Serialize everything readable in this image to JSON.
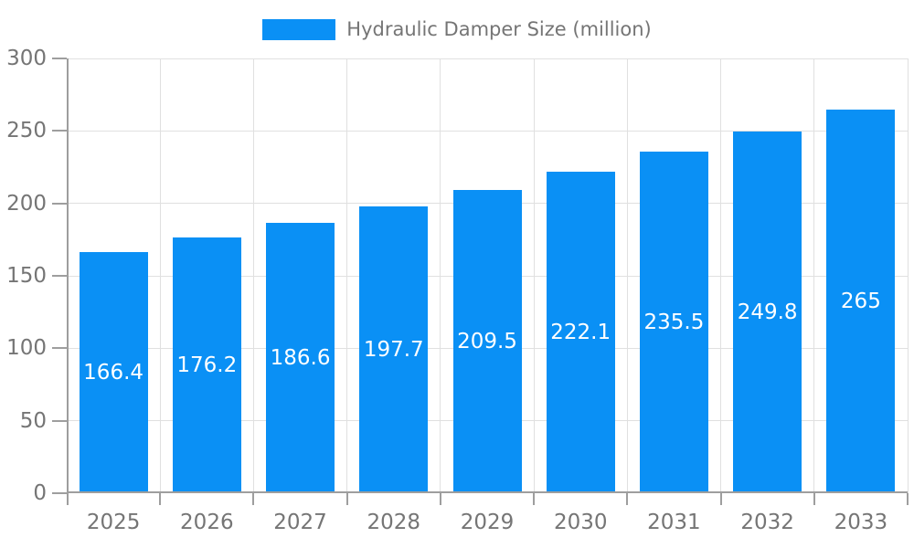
{
  "chart_data": {
    "type": "bar",
    "title": "",
    "legend": "Hydraulic Damper Size (million)",
    "legend_position": "top",
    "categories": [
      "2025",
      "2026",
      "2027",
      "2028",
      "2029",
      "2030",
      "2031",
      "2032",
      "2033"
    ],
    "values": [
      166.4,
      176.2,
      186.6,
      197.7,
      209.5,
      222.1,
      235.5,
      249.8,
      265
    ],
    "xlabel": "",
    "ylabel": "",
    "ylim": [
      0,
      300
    ],
    "yticks": [
      0,
      50,
      100,
      150,
      200,
      250,
      300
    ],
    "grid": true,
    "value_labels_inside_bars": true,
    "colors": {
      "bar": "#0a90f5",
      "bar_label": "#ffffff",
      "axis": "#9e9e9e",
      "grid": "#e0e0e0",
      "tick_label": "#757575",
      "legend_text": "#757575",
      "background": "#ffffff"
    }
  }
}
